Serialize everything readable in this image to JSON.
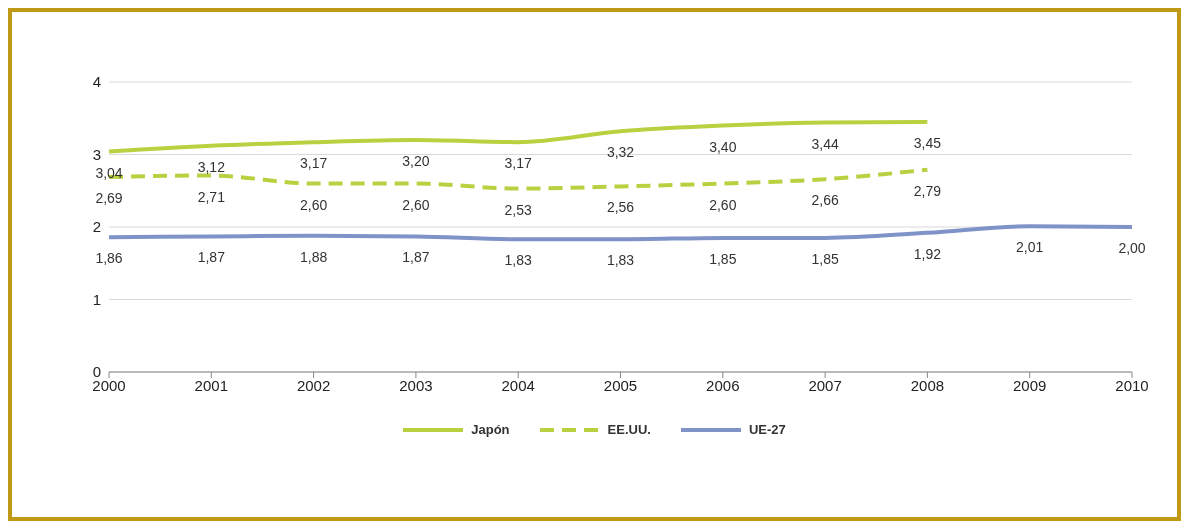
{
  "chart_data": {
    "type": "line",
    "categories": [
      "2000",
      "2001",
      "2002",
      "2003",
      "2004",
      "2005",
      "2006",
      "2007",
      "2008",
      "2009",
      "2010"
    ],
    "series": [
      {
        "name": "Japón",
        "color": "#b8d140",
        "line_style": "solid",
        "values": [
          3.04,
          3.12,
          3.17,
          3.2,
          3.17,
          3.32,
          3.4,
          3.44,
          3.45,
          null,
          null
        ],
        "value_labels": [
          "3,04",
          "3,12",
          "3,17",
          "3,20",
          "3,17",
          "3,32",
          "3,40",
          "3,44",
          "3,45",
          null,
          null
        ]
      },
      {
        "name": "EE.UU.",
        "color": "#b8d140",
        "line_style": "dashed",
        "values": [
          2.69,
          2.71,
          2.6,
          2.6,
          2.53,
          2.56,
          2.6,
          2.66,
          2.79,
          null,
          null
        ],
        "value_labels": [
          "2,69",
          "2,71",
          "2,60",
          "2,60",
          "2,53",
          "2,56",
          "2,60",
          "2,66",
          "2,79",
          null,
          null
        ]
      },
      {
        "name": "UE-27",
        "color": "#8093c9",
        "line_style": "solid",
        "values": [
          1.86,
          1.87,
          1.88,
          1.87,
          1.83,
          1.83,
          1.85,
          1.85,
          1.92,
          2.01,
          2.0
        ],
        "value_labels": [
          "1,86",
          "1,87",
          "1,88",
          "1,87",
          "1,83",
          "1,83",
          "1,85",
          "1,85",
          "1,92",
          "2,01",
          "2,00"
        ]
      }
    ],
    "ylim": [
      0,
      4
    ],
    "yticks": [
      0,
      1,
      2,
      3,
      4
    ],
    "grid": "y",
    "legend": "bottom",
    "marker": "none"
  }
}
